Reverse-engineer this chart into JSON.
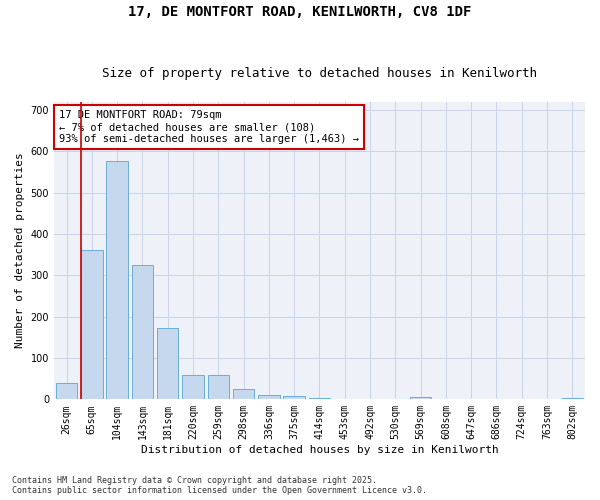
{
  "title_line1": "17, DE MONTFORT ROAD, KENILWORTH, CV8 1DF",
  "title_line2": "Size of property relative to detached houses in Kenilworth",
  "xlabel": "Distribution of detached houses by size in Kenilworth",
  "ylabel": "Number of detached properties",
  "categories": [
    "26sqm",
    "65sqm",
    "104sqm",
    "143sqm",
    "181sqm",
    "220sqm",
    "259sqm",
    "298sqm",
    "336sqm",
    "375sqm",
    "414sqm",
    "453sqm",
    "492sqm",
    "530sqm",
    "569sqm",
    "608sqm",
    "647sqm",
    "686sqm",
    "724sqm",
    "763sqm",
    "802sqm"
  ],
  "values": [
    40,
    362,
    575,
    325,
    172,
    58,
    58,
    25,
    10,
    7,
    4,
    0,
    0,
    0,
    5,
    0,
    0,
    0,
    0,
    0,
    3
  ],
  "bar_color": "#c5d8ed",
  "bar_edge_color": "#6aaed6",
  "grid_color": "#c8d4e8",
  "background_color": "#eef2f8",
  "annotation_text": "17 DE MONTFORT ROAD: 79sqm\n← 7% of detached houses are smaller (108)\n93% of semi-detached houses are larger (1,463) →",
  "annotation_box_color": "#ffffff",
  "annotation_box_edge": "#cc0000",
  "vline_color": "#cc0000",
  "vline_xindex": 1,
  "ylim": [
    0,
    720
  ],
  "yticks": [
    0,
    100,
    200,
    300,
    400,
    500,
    600,
    700
  ],
  "footnote": "Contains HM Land Registry data © Crown copyright and database right 2025.\nContains public sector information licensed under the Open Government Licence v3.0.",
  "title_fontsize": 10,
  "subtitle_fontsize": 9,
  "label_fontsize": 8,
  "tick_fontsize": 7,
  "annot_fontsize": 7.5,
  "footnote_fontsize": 6
}
